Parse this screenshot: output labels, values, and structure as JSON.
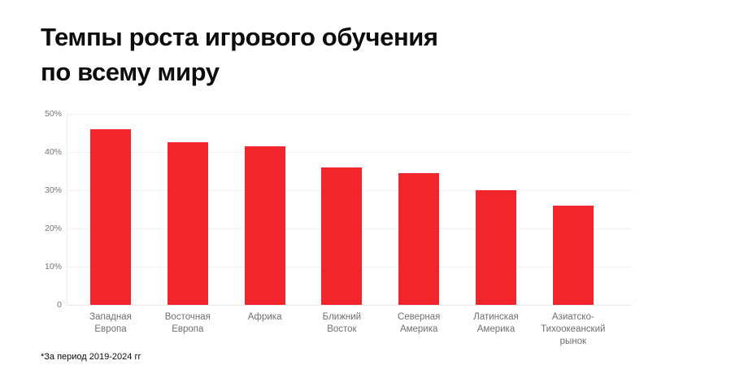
{
  "page": {
    "title_line1": "Темпы роста игрового обучения",
    "title_line2": "по всему миру",
    "footnote": "*За период 2019-2024 гг"
  },
  "colors": {
    "bar": "#f2242c",
    "title_text": "#0d0d0d",
    "axis_label": "#757575",
    "category_label": "#6f6f6f",
    "gridline": "#f1f1f1",
    "background": "#ffffff"
  },
  "chart_data": {
    "type": "bar",
    "title": "Темпы роста игрового обучения по всему миру",
    "footnote": "*За период 2019-2024 гг",
    "categories": [
      "Западная Европа",
      "Восточная Европа",
      "Африка",
      "Ближний Восток",
      "Северная Америка",
      "Латинская Америка",
      "Азиатско-Тихоокеанский рынок"
    ],
    "category_lines": [
      [
        "Западная",
        "Европа"
      ],
      [
        "Восточная",
        "Европа"
      ],
      [
        "Африка"
      ],
      [
        "Ближний",
        "Восток"
      ],
      [
        "Северная",
        "Америка"
      ],
      [
        "Латинская",
        "Америка"
      ],
      [
        "Азиатско-",
        "Тихоокеанский",
        "рынок"
      ]
    ],
    "values": [
      46,
      42.5,
      41.5,
      36,
      34.5,
      30,
      26
    ],
    "unit": "%",
    "xlabel": "",
    "ylabel": "",
    "ylim": [
      0,
      50
    ],
    "yticks": [
      {
        "value": 0,
        "label": "0"
      },
      {
        "value": 10,
        "label": "10%"
      },
      {
        "value": 20,
        "label": "20%"
      },
      {
        "value": 30,
        "label": "30%"
      },
      {
        "value": 40,
        "label": "40%"
      },
      {
        "value": 50,
        "label": "50%"
      }
    ],
    "grid": "horizontal",
    "legend": "none",
    "bar_color": "#f2242c"
  }
}
